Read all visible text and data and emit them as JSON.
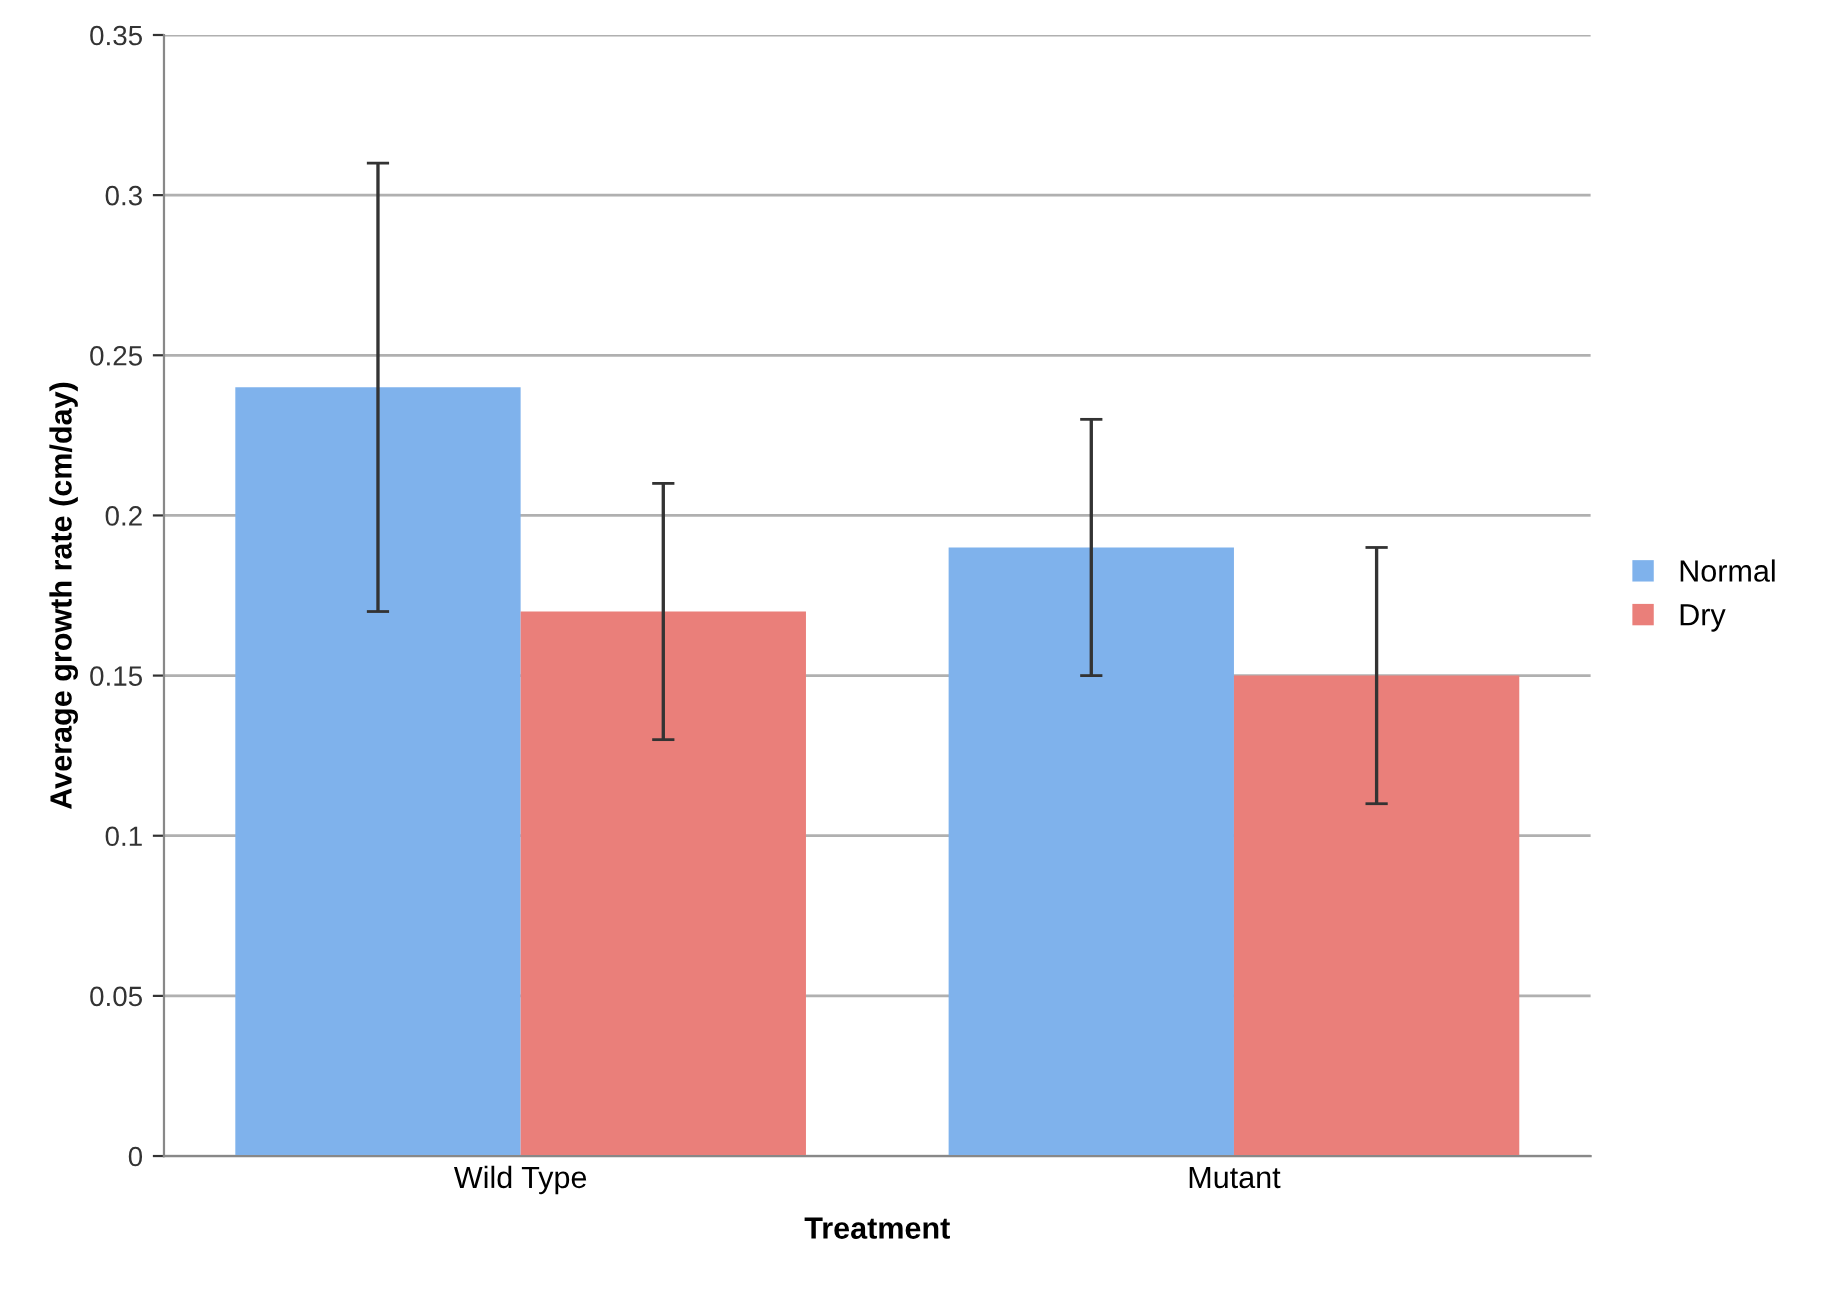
{
  "chart_data": {
    "type": "bar",
    "xlabel": "Treatment",
    "ylabel": "Average growth rate (cm/day)",
    "categories": [
      "Wild Type",
      "Mutant"
    ],
    "series": [
      {
        "name": "Normal",
        "color": "#7fb2ec",
        "values": [
          0.24,
          0.19
        ],
        "errors": [
          0.07,
          0.04
        ]
      },
      {
        "name": "Dry",
        "color": "#ea7f7a",
        "values": [
          0.17,
          0.15
        ],
        "errors": [
          0.04,
          0.04
        ]
      }
    ],
    "ylim": [
      0,
      0.35
    ],
    "yticks": [
      0,
      0.05,
      0.1,
      0.15,
      0.2,
      0.25,
      0.3,
      0.35
    ],
    "grid": "y",
    "legend": "right"
  }
}
